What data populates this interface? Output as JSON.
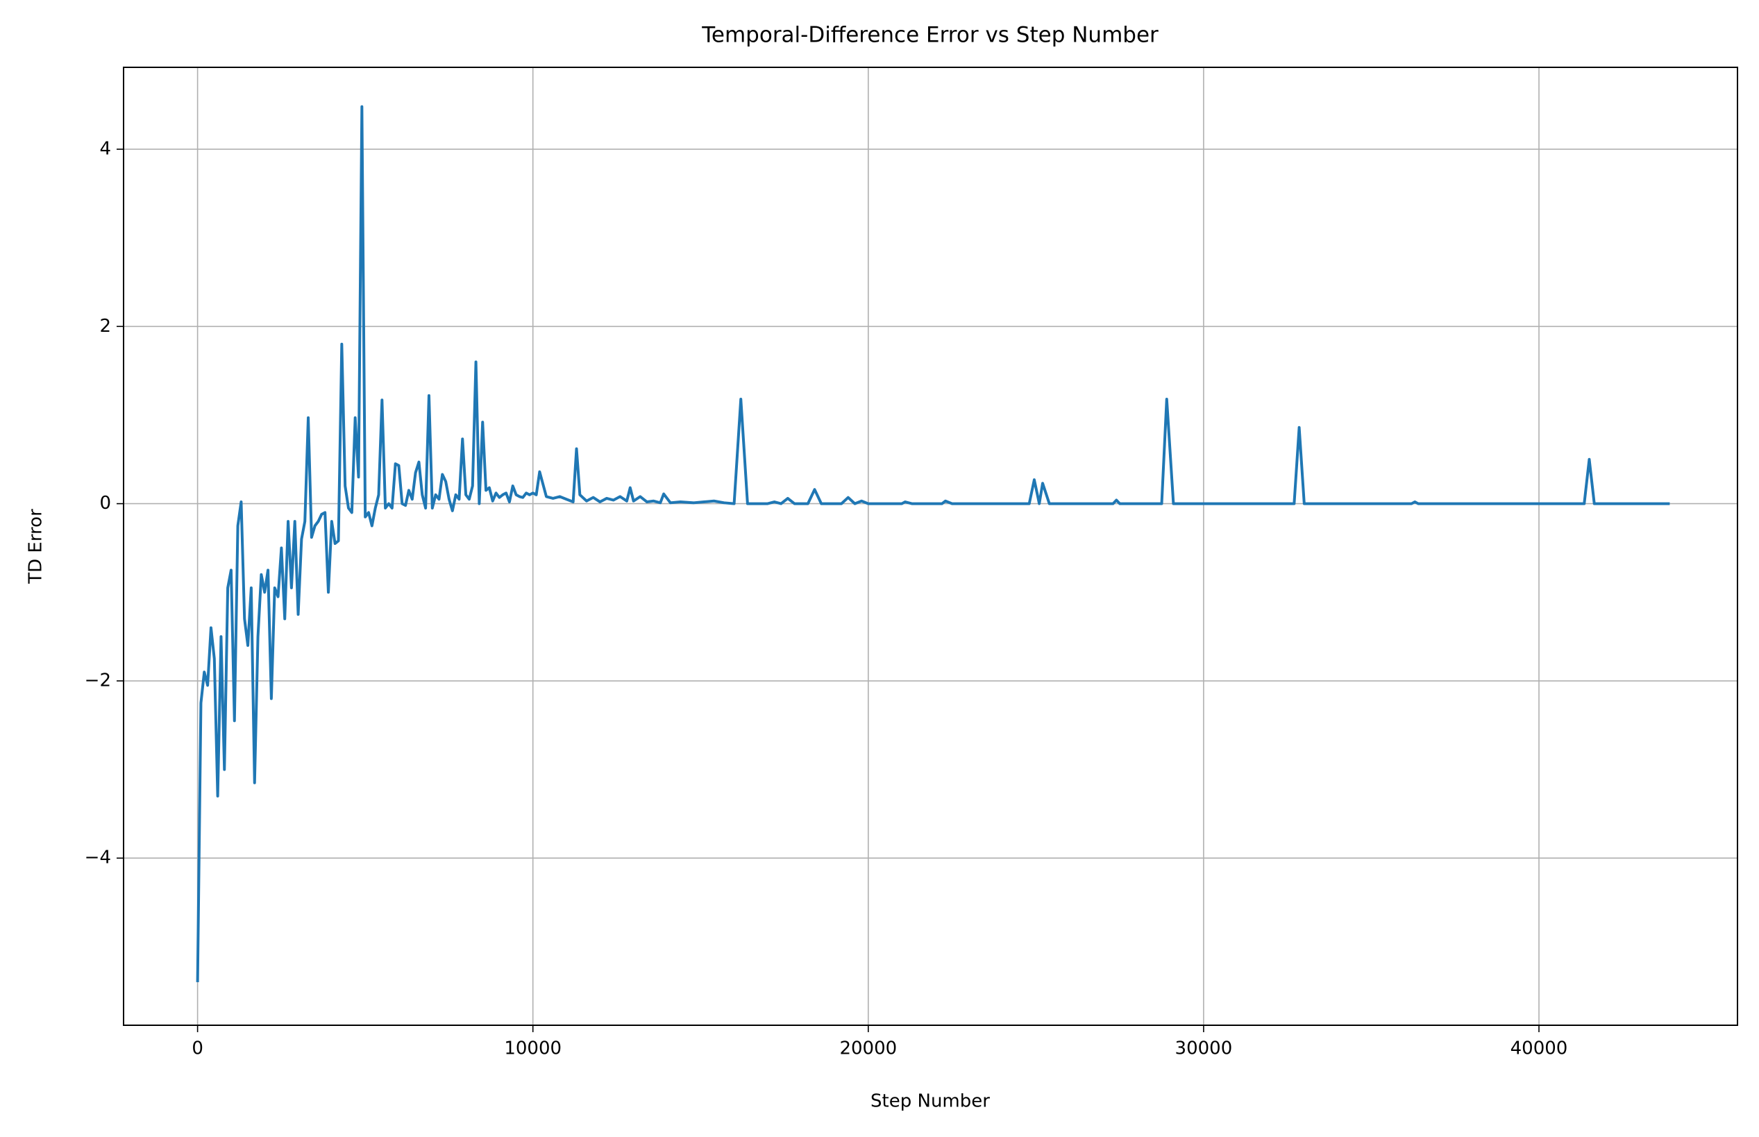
{
  "chart_data": {
    "type": "line",
    "title": "Temporal-Difference Error vs Step Number",
    "x_label": "Step Number",
    "y_label": "TD Error",
    "color": "#1f77b4",
    "grid": true,
    "x": [
      0,
      100,
      200,
      300,
      400,
      500,
      600,
      700,
      800,
      900,
      1000,
      1100,
      1200,
      1300,
      1400,
      1500,
      1600,
      1700,
      1800,
      1900,
      2000,
      2100,
      2200,
      2300,
      2400,
      2500,
      2600,
      2700,
      2800,
      2900,
      3000,
      3100,
      3200,
      3300,
      3400,
      3500,
      3600,
      3700,
      3800,
      3900,
      4000,
      4100,
      4200,
      4300,
      4400,
      4500,
      4600,
      4700,
      4800,
      4900,
      5000,
      5100,
      5200,
      5300,
      5400,
      5500,
      5600,
      5700,
      5800,
      5900,
      6000,
      6100,
      6200,
      6300,
      6400,
      6500,
      6600,
      6700,
      6800,
      6900,
      7000,
      7100,
      7200,
      7300,
      7400,
      7500,
      7600,
      7700,
      7800,
      7900,
      8000,
      8100,
      8200,
      8300,
      8400,
      8500,
      8600,
      8700,
      8800,
      8900,
      9000,
      9100,
      9200,
      9300,
      9400,
      9500,
      9600,
      9700,
      9800,
      9900,
      10000,
      10100,
      10200,
      10400,
      10600,
      10800,
      11000,
      11200,
      11300,
      11400,
      11600,
      11800,
      12000,
      12200,
      12400,
      12600,
      12800,
      12900,
      13000,
      13200,
      13400,
      13600,
      13800,
      13900,
      14100,
      14400,
      14800,
      15100,
      15400,
      15700,
      16000,
      16200,
      16400,
      17000,
      17200,
      17400,
      17600,
      17800,
      18200,
      18400,
      18600,
      19200,
      19400,
      19600,
      19800,
      20000,
      21000,
      21100,
      21300,
      22200,
      22300,
      22500,
      24800,
      24950,
      25100,
      25200,
      25400,
      27300,
      27400,
      27500,
      28750,
      28900,
      29100,
      32700,
      32850,
      33000,
      36200,
      36300,
      36400,
      41350,
      41500,
      41650,
      43900
    ],
    "values": [
      -5.4,
      -2.25,
      -1.9,
      -2.05,
      -1.4,
      -1.75,
      -3.3,
      -1.5,
      -3.0,
      -0.95,
      -0.75,
      -2.45,
      -0.25,
      0.02,
      -1.3,
      -1.6,
      -0.95,
      -3.15,
      -1.5,
      -0.8,
      -1.0,
      -0.75,
      -2.2,
      -0.95,
      -1.05,
      -0.5,
      -1.3,
      -0.2,
      -0.95,
      -0.2,
      -1.25,
      -0.4,
      -0.2,
      0.97,
      -0.38,
      -0.25,
      -0.2,
      -0.12,
      -0.1,
      -1.0,
      -0.2,
      -0.45,
      -0.42,
      1.8,
      0.2,
      -0.05,
      -0.1,
      0.97,
      0.3,
      4.48,
      -0.15,
      -0.1,
      -0.25,
      -0.05,
      0.1,
      1.17,
      -0.05,
      0.0,
      -0.05,
      0.45,
      0.43,
      0.0,
      -0.02,
      0.15,
      0.05,
      0.35,
      0.47,
      0.1,
      -0.05,
      1.22,
      -0.05,
      0.1,
      0.05,
      0.33,
      0.25,
      0.05,
      -0.08,
      0.1,
      0.05,
      0.73,
      0.1,
      0.05,
      0.2,
      1.6,
      0.0,
      0.92,
      0.15,
      0.18,
      0.03,
      0.12,
      0.07,
      0.1,
      0.12,
      0.02,
      0.2,
      0.1,
      0.08,
      0.07,
      0.12,
      0.1,
      0.12,
      0.1,
      0.36,
      0.08,
      0.06,
      0.08,
      0.05,
      0.02,
      0.62,
      0.1,
      0.03,
      0.07,
      0.02,
      0.06,
      0.04,
      0.08,
      0.03,
      0.18,
      0.03,
      0.08,
      0.02,
      0.03,
      0.01,
      0.11,
      0.01,
      0.02,
      0.01,
      0.02,
      0.03,
      0.01,
      0.0,
      1.18,
      0.0,
      0.0,
      0.02,
      0.0,
      0.06,
      0.0,
      0.0,
      0.16,
      0.0,
      0.0,
      0.07,
      0.0,
      0.03,
      0.0,
      0.0,
      0.02,
      0.0,
      0.0,
      0.03,
      0.0,
      0.0,
      0.27,
      0.0,
      0.23,
      0.0,
      0.0,
      0.04,
      0.0,
      0.0,
      1.18,
      0.0,
      0.0,
      0.86,
      0.0,
      0.0,
      0.02,
      0.0,
      0.0,
      0.5,
      0.0,
      0.0
    ],
    "xlim": [
      -2207,
      45920
    ],
    "ylim": [
      -5.886,
      4.924
    ],
    "xticks": [
      0,
      10000,
      20000,
      30000,
      40000
    ],
    "yticks": [
      {
        "value": -4,
        "label": "−4"
      },
      {
        "value": -2,
        "label": "−2"
      },
      0,
      2,
      4
    ]
  }
}
